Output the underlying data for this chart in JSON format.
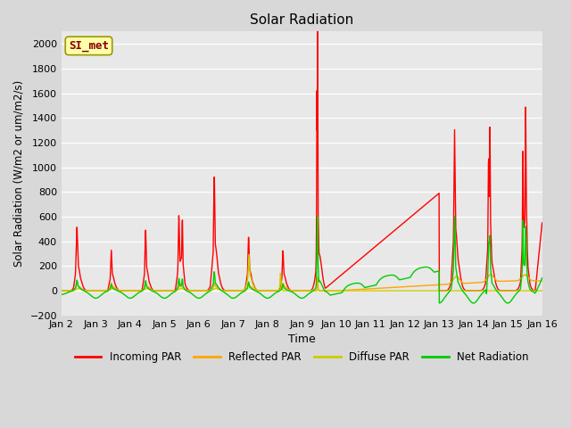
{
  "title": "Solar Radiation",
  "xlabel": "Time",
  "ylabel": "Solar Radiation (W/m2 or um/m2/s)",
  "ylim": [
    -200,
    2100
  ],
  "yticks": [
    -200,
    0,
    200,
    400,
    600,
    800,
    1000,
    1200,
    1400,
    1600,
    1800,
    2000
  ],
  "xtick_labels": [
    "Jan 2",
    "Jan 3",
    "Jan 4",
    "Jan 5",
    "Jan 6",
    "Jan 7",
    "Jan 8",
    "Jan 9",
    "Jan 10",
    "Jan 11",
    "Jan 12",
    "Jan 13",
    "Jan 14",
    "Jan 15",
    "Jan 16"
  ],
  "colors": {
    "incoming": "#ff0000",
    "reflected": "#ffa500",
    "diffuse": "#cccc00",
    "net": "#00cc00"
  },
  "legend_labels": [
    "Incoming PAR",
    "Reflected PAR",
    "Diffuse PAR",
    "Net Radiation"
  ],
  "watermark_text": "SI_met",
  "watermark_color": "#8b0000",
  "watermark_bg": "#ffffaa",
  "bg_color": "#d8d8d8",
  "plot_bg": "#e8e8e8",
  "linewidth": 1.0
}
